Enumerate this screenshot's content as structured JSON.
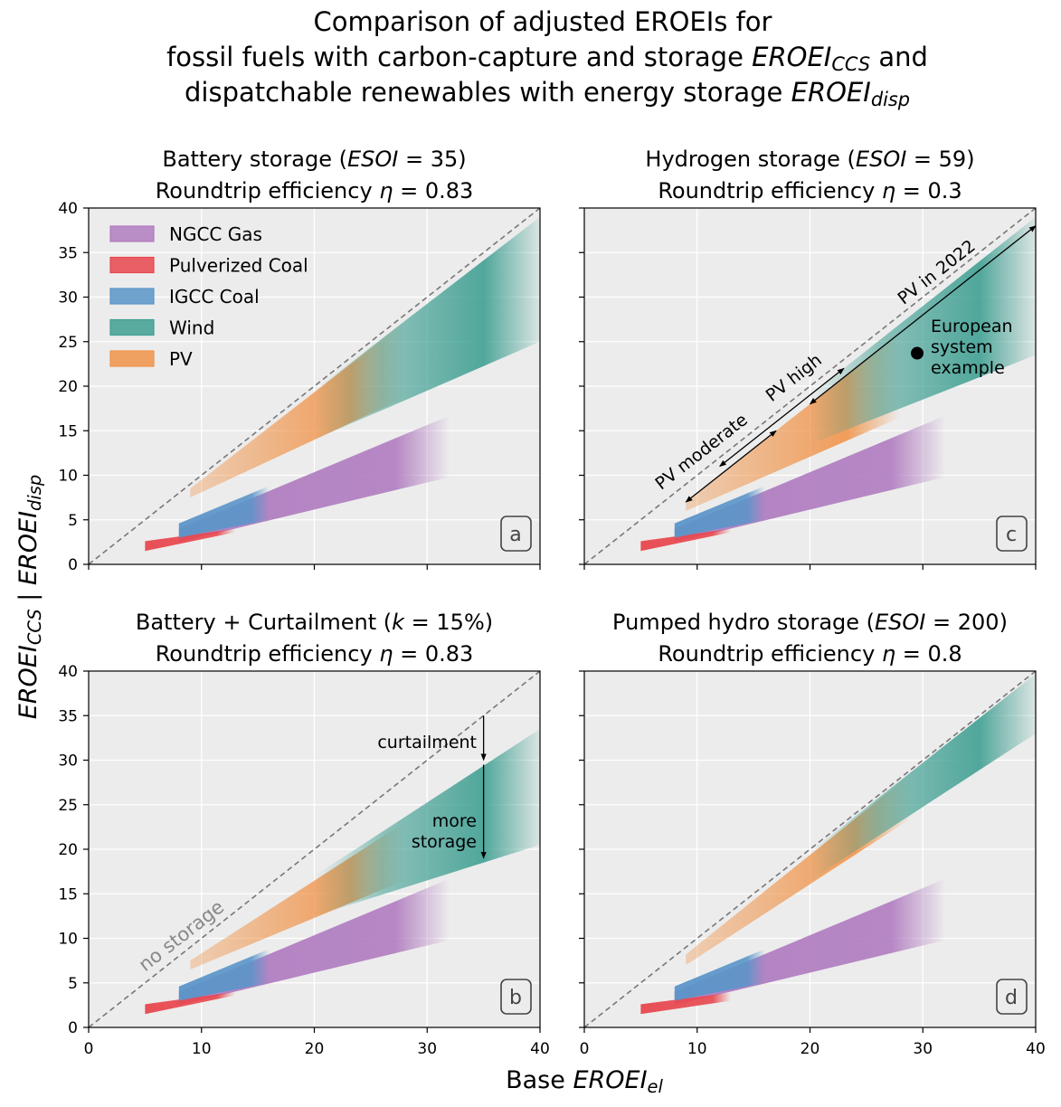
{
  "figure": {
    "title_lines": [
      "Comparison of adjusted EROEIs for",
      "fossil fuels with carbon-capture and storage EROEI_CCS and",
      "dispatchable renewables with energy storage EROEI_disp"
    ],
    "xlabel": "Base EROEI_el",
    "ylabel": "EROEI_CCS | EROEI_disp"
  },
  "colors": {
    "background": "#ececec",
    "grid": "#ffffff",
    "NGCC Gas": "#b07cc0",
    "Pulverized Coal": "#e8474e",
    "IGCC Coal": "#5b95c9",
    "Wind": "#3f9f92",
    "PV": "#f0944a"
  },
  "legend": {
    "placement": "upper-left",
    "items": [
      "NGCC Gas",
      "Pulverized Coal",
      "IGCC Coal",
      "Wind",
      "PV"
    ]
  },
  "chart_data": [
    {
      "type": "area",
      "panel": "a",
      "title": "Battery storage (ESOI = 35)",
      "subtitle": "Roundtrip efficiency η = 0.83",
      "xlim": [
        0,
        40
      ],
      "ylim": [
        0,
        40
      ],
      "xticks": [
        0,
        10,
        20,
        30,
        40
      ],
      "yticks": [
        0,
        5,
        10,
        15,
        20,
        25,
        30,
        35,
        40
      ],
      "grid": true,
      "reference_line": "y = x",
      "legend": "top-left",
      "bands": [
        {
          "name": "NGCC Gas",
          "x": [
            8,
            32
          ],
          "lower": [
            2.5,
            9.8
          ],
          "upper": [
            4.0,
            16.7
          ]
        },
        {
          "name": "Pulverized Coal",
          "x": [
            5,
            13
          ],
          "lower": [
            1.5,
            3.6
          ],
          "upper": [
            2.6,
            4.0
          ]
        },
        {
          "name": "IGCC Coal",
          "x": [
            8,
            16
          ],
          "lower": [
            3.0,
            5.0
          ],
          "upper": [
            4.6,
            8.8
          ]
        },
        {
          "name": "PV",
          "x": [
            9,
            28
          ],
          "lower": [
            7.5,
            18.7
          ],
          "upper": [
            8.5,
            27.2
          ]
        },
        {
          "name": "Wind",
          "x": [
            20,
            40
          ],
          "lower": [
            14.0,
            25.0
          ],
          "upper": [
            19.5,
            39.0
          ]
        }
      ],
      "annotations": [],
      "corner_label": "a"
    },
    {
      "type": "area",
      "panel": "c",
      "title": "Hydrogen storage (ESOI = 59)",
      "subtitle": "Roundtrip efficiency η = 0.3",
      "xlim": [
        0,
        40
      ],
      "ylim": [
        0,
        40
      ],
      "xticks": [
        0,
        10,
        20,
        30,
        40
      ],
      "yticks": [
        0,
        5,
        10,
        15,
        20,
        25,
        30,
        35,
        40
      ],
      "grid": true,
      "reference_line": "y = x",
      "bands": [
        {
          "name": "NGCC Gas",
          "x": [
            8,
            32
          ],
          "lower": [
            2.5,
            9.8
          ],
          "upper": [
            4.0,
            16.7
          ]
        },
        {
          "name": "Pulverized Coal",
          "x": [
            5,
            13
          ],
          "lower": [
            1.5,
            3.6
          ],
          "upper": [
            2.6,
            4.0
          ]
        },
        {
          "name": "IGCC Coal",
          "x": [
            8,
            16
          ],
          "lower": [
            3.0,
            5.0
          ],
          "upper": [
            4.6,
            8.8
          ]
        },
        {
          "name": "PV",
          "x": [
            9,
            28
          ],
          "lower": [
            6.0,
            16.5
          ],
          "upper": [
            7.0,
            26.0
          ]
        },
        {
          "name": "Wind",
          "x": [
            20,
            40
          ],
          "lower": [
            13.5,
            23.5
          ],
          "upper": [
            19.0,
            39.0
          ]
        }
      ],
      "arrows": [
        {
          "label": "PV moderate",
          "from": [
            9,
            7
          ],
          "to": [
            17,
            15
          ]
        },
        {
          "label": "PV high",
          "from": [
            12,
            11
          ],
          "to": [
            23,
            22
          ]
        },
        {
          "label": "PV in 2022",
          "from": [
            20,
            18
          ],
          "to": [
            40,
            38
          ]
        }
      ],
      "point": {
        "label": "European system example",
        "x": 29.5,
        "y": 23.7
      },
      "text_labels": [
        "PV moderate",
        "PV high",
        "PV in 2022",
        "European",
        "system",
        "example"
      ],
      "corner_label": "c"
    },
    {
      "type": "area",
      "panel": "b",
      "title": "Battery + Curtailment (k = 15%)",
      "subtitle": "Roundtrip efficiency η = 0.83",
      "xlim": [
        0,
        40
      ],
      "ylim": [
        0,
        40
      ],
      "xticks": [
        0,
        10,
        20,
        30,
        40
      ],
      "yticks": [
        0,
        5,
        10,
        15,
        20,
        25,
        30,
        35,
        40
      ],
      "grid": true,
      "reference_line": "y = x",
      "reference_label": "no storage",
      "bands": [
        {
          "name": "NGCC Gas",
          "x": [
            8,
            32
          ],
          "lower": [
            2.5,
            9.8
          ],
          "upper": [
            4.0,
            16.7
          ]
        },
        {
          "name": "Pulverized Coal",
          "x": [
            5,
            13
          ],
          "lower": [
            1.5,
            3.6
          ],
          "upper": [
            2.6,
            4.0
          ]
        },
        {
          "name": "IGCC Coal",
          "x": [
            8,
            16
          ],
          "lower": [
            3.0,
            5.0
          ],
          "upper": [
            4.6,
            8.8
          ]
        },
        {
          "name": "PV",
          "x": [
            9,
            28
          ],
          "lower": [
            6.5,
            16.5
          ],
          "upper": [
            7.5,
            23.0
          ]
        },
        {
          "name": "Wind",
          "x": [
            20,
            40
          ],
          "lower": [
            12.5,
            20.5
          ],
          "upper": [
            17.0,
            33.5
          ]
        }
      ],
      "arrows": [
        {
          "label": "curtailment",
          "from": [
            35,
            35
          ],
          "to": [
            35,
            30
          ]
        },
        {
          "label": "more storage",
          "from": [
            35,
            29.5
          ],
          "to": [
            35,
            19
          ]
        }
      ],
      "text_labels": [
        "no storage",
        "curtailment",
        "more",
        "storage"
      ],
      "corner_label": "b"
    },
    {
      "type": "area",
      "panel": "d",
      "title": "Pumped hydro storage (ESOI = 200)",
      "subtitle": "Roundtrip efficiency η = 0.8",
      "xlim": [
        0,
        40
      ],
      "ylim": [
        0,
        40
      ],
      "xticks": [
        0,
        10,
        20,
        30,
        40
      ],
      "yticks": [
        0,
        5,
        10,
        15,
        20,
        25,
        30,
        35,
        40
      ],
      "grid": true,
      "reference_line": "y = x",
      "bands": [
        {
          "name": "NGCC Gas",
          "x": [
            8,
            32
          ],
          "lower": [
            2.5,
            9.8
          ],
          "upper": [
            4.0,
            16.7
          ]
        },
        {
          "name": "Pulverized Coal",
          "x": [
            5,
            13
          ],
          "lower": [
            1.5,
            3.0
          ],
          "upper": [
            2.6,
            3.9
          ]
        },
        {
          "name": "IGCC Coal",
          "x": [
            8,
            16
          ],
          "lower": [
            3.0,
            5.0
          ],
          "upper": [
            4.6,
            8.8
          ]
        },
        {
          "name": "PV",
          "x": [
            9,
            29
          ],
          "lower": [
            7.0,
            23.5
          ],
          "upper": [
            8.2,
            28.5
          ]
        },
        {
          "name": "Wind",
          "x": [
            20,
            40
          ],
          "lower": [
            16.5,
            33.0
          ],
          "upper": [
            19.7,
            39.7
          ]
        }
      ],
      "annotations": [],
      "corner_label": "d"
    }
  ]
}
